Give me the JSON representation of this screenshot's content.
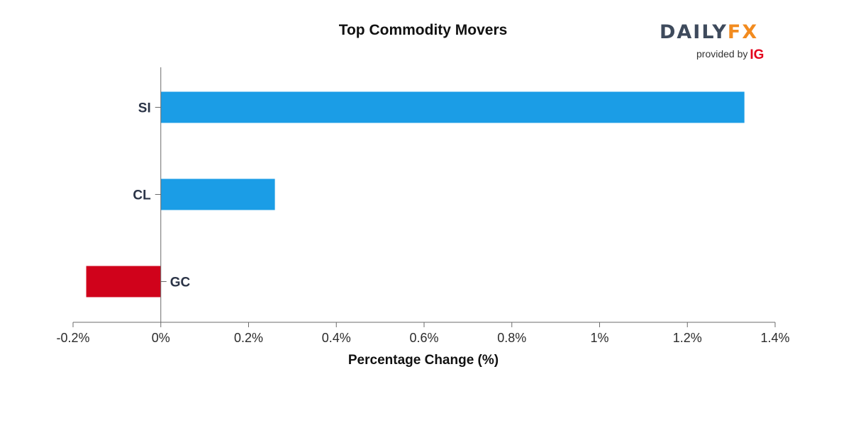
{
  "chart_data": {
    "type": "bar",
    "orientation": "horizontal",
    "title": "Top Commodity Movers",
    "xlabel": "Percentage Change (%)",
    "ylabel": "",
    "categories": [
      "SI",
      "CL",
      "GC"
    ],
    "values": [
      1.33,
      0.26,
      -0.17
    ],
    "xlim": [
      -0.2,
      1.4
    ],
    "x_ticks": [
      -0.2,
      0,
      0.2,
      0.4,
      0.6,
      0.8,
      1.0,
      1.2,
      1.4
    ],
    "x_tick_labels": [
      "-0.2%",
      "0%",
      "0.2%",
      "0.4%",
      "0.6%",
      "0.8%",
      "1%",
      "1.2%",
      "1.4%"
    ],
    "grid": false,
    "legend": "none",
    "colors": {
      "positive": "#1b9de6",
      "negative": "#d0021b"
    }
  },
  "branding": {
    "logo_daily": "DAILY",
    "logo_fx": "FX",
    "provided_by": "provided by",
    "ig": "IG"
  }
}
